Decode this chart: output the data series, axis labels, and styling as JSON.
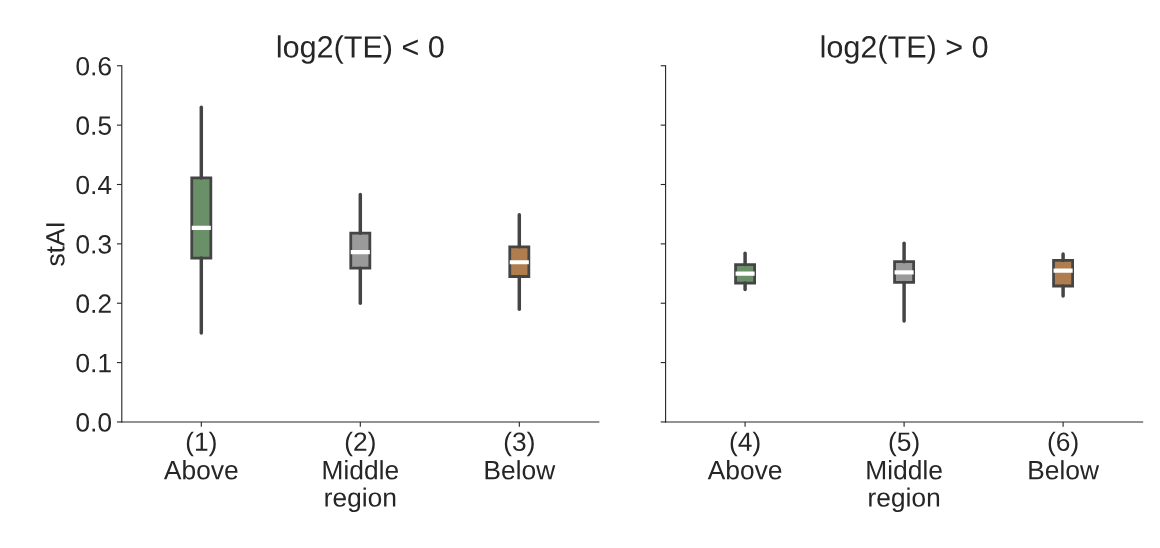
{
  "chart_data": [
    {
      "type": "box",
      "title": "log2(TE) < 0",
      "xlabel": "region",
      "ylabel": "stAI",
      "categories": [
        "(1)\nAbove",
        "(2)\nMiddle",
        "(3)\nBelow"
      ],
      "colors": [
        "#6a9068",
        "#9a9a9a",
        "#b07d4e"
      ],
      "boxes": [
        {
          "low": 0.15,
          "q1": 0.276,
          "median": 0.327,
          "q3": 0.411,
          "high": 0.53
        },
        {
          "low": 0.2,
          "q1": 0.259,
          "median": 0.286,
          "q3": 0.318,
          "high": 0.383
        },
        {
          "low": 0.19,
          "q1": 0.245,
          "median": 0.269,
          "q3": 0.295,
          "high": 0.349
        }
      ],
      "ylim": [
        0,
        0.6
      ],
      "yticks": [
        {
          "value": 0,
          "label": "0.0"
        },
        0.1,
        0.2,
        0.3,
        0.4,
        0.5,
        0.6
      ],
      "grid": false,
      "legend": false
    },
    {
      "type": "box",
      "title": "log2(TE) > 0",
      "xlabel": "region",
      "categories": [
        "(4)\nAbove",
        "(5)\nMiddle",
        "(6)\nBelow"
      ],
      "colors": [
        "#6a9068",
        "#9a9a9a",
        "#b07d4e"
      ],
      "boxes": [
        {
          "low": 0.223,
          "q1": 0.234,
          "median": 0.25,
          "q3": 0.265,
          "high": 0.284
        },
        {
          "low": 0.17,
          "q1": 0.235,
          "median": 0.252,
          "q3": 0.27,
          "high": 0.301
        },
        {
          "low": 0.212,
          "q1": 0.229,
          "median": 0.255,
          "q3": 0.272,
          "high": 0.283
        }
      ],
      "ylim": [
        0,
        0.6
      ],
      "yticks": [
        0,
        0.1,
        0.2,
        0.3,
        0.4,
        0.5,
        0.6
      ],
      "tick_labels": "x",
      "grid": false,
      "legend": false
    }
  ]
}
